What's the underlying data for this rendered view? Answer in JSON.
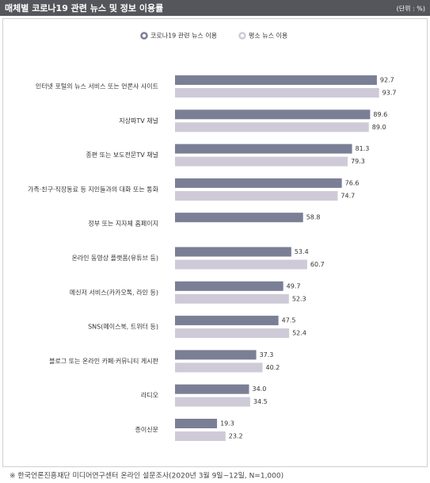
{
  "chart_data": {
    "type": "bar",
    "orientation": "horizontal",
    "title": "매체별 코로나19 관련 뉴스 및 정보 이용률",
    "unit_label": "(단위 : %)",
    "categories": [
      "인터넷 포털의 뉴스 서비스 또는 언론사 사이트",
      "지상파TV 채널",
      "종편 또는 보도전문TV 채널",
      "가족·친구·직장동료 등 지인들과의 대화 또는 통화",
      "정부 또는 지자체 홈페이지",
      "온라인 동영상 플랫폼(유튜브 등)",
      "메신저 서비스(카카오톡, 라인 등)",
      "SNS(페이스북, 트위터 등)",
      "블로그 또는 온라인 카페·커뮤니티 게시판",
      "라디오",
      "종이신문"
    ],
    "series": [
      {
        "name": "코로나19 관련 뉴스 이용",
        "color": "#7a7f96",
        "values": [
          92.7,
          89.6,
          81.3,
          76.6,
          58.8,
          53.4,
          49.7,
          47.5,
          37.3,
          34.0,
          19.3
        ],
        "value_labels": [
          "92.7",
          "89.6",
          "81.3",
          "76.6",
          "58.8",
          "53.4",
          "49.7",
          "47.5",
          "37.3",
          "34.0",
          "19.3"
        ]
      },
      {
        "name": "평소 뉴스 이용",
        "color": "#cfcad8",
        "values": [
          93.7,
          89.0,
          79.3,
          74.7,
          null,
          60.7,
          52.3,
          52.4,
          40.2,
          34.5,
          23.2
        ],
        "value_labels": [
          "93.7",
          "89.0",
          "79.3",
          "74.7",
          null,
          "60.7",
          "52.3",
          "52.4",
          "40.2",
          "34.5",
          "23.2"
        ]
      }
    ],
    "xlim": [
      0,
      100
    ],
    "footnote": "※ 한국언론진흥재단 미디어연구센터 온라인 설문조사(2020년 3월 9일~12일, N=1,000)"
  }
}
